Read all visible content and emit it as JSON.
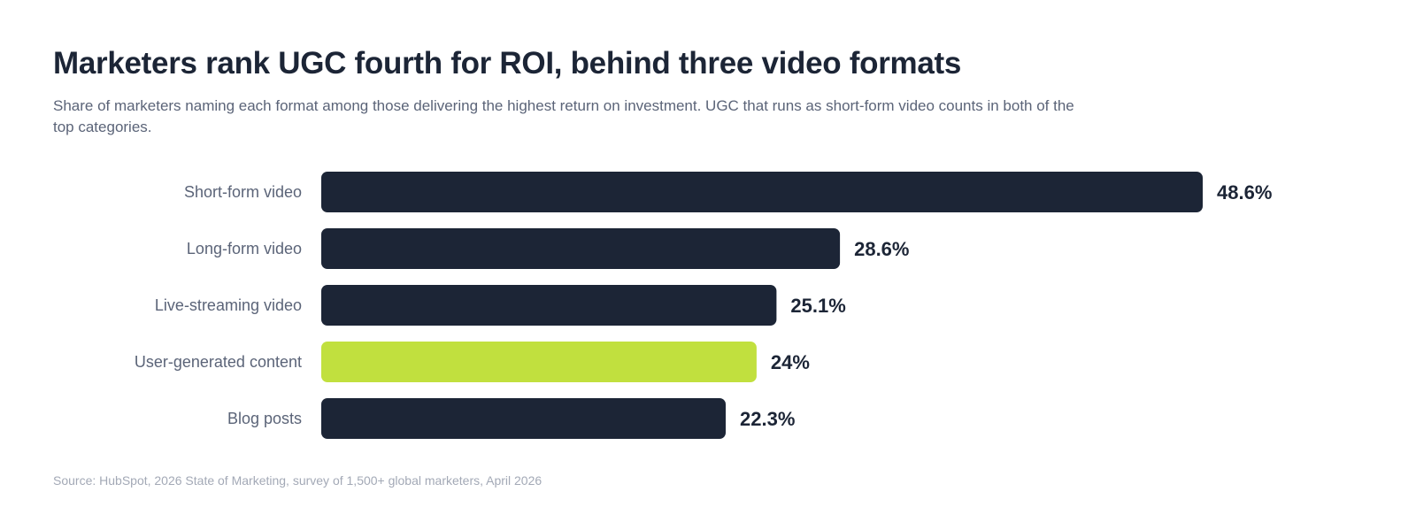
{
  "header": {
    "title": "Marketers rank UGC fourth for ROI, behind three video formats",
    "subtitle": "Share of marketers naming each format among those delivering the highest return on investment. UGC that runs as short-form video counts in both of the top categories."
  },
  "footer": {
    "source": "Source: HubSpot, 2026 State of Marketing, survey of 1,500+ global marketers, April 2026"
  },
  "colors": {
    "bar_default": "#1c2536",
    "bar_highlight": "#c1e03e"
  },
  "chart_data": {
    "type": "bar",
    "orientation": "horizontal",
    "title": "Marketers rank UGC fourth for ROI, behind three video formats",
    "xlabel": "",
    "ylabel": "",
    "grid": false,
    "legend": "none",
    "categories": [
      "Short-form video",
      "Long-form video",
      "Live-streaming video",
      "User-generated content",
      "Blog posts"
    ],
    "values": [
      48.6,
      28.6,
      25.1,
      24,
      22.3
    ],
    "value_labels": [
      "48.6%",
      "28.6%",
      "25.1%",
      "24%",
      "22.3%"
    ],
    "highlight": "User-generated content"
  }
}
